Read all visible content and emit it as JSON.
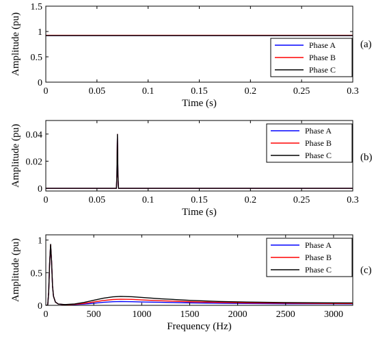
{
  "figure": {
    "colors": {
      "Phase A": "#0000ff",
      "Phase B": "#ff0000",
      "Phase C": "#000000"
    }
  },
  "chart_data": [
    {
      "type": "line",
      "panel_label": "(a)",
      "xlabel": "Time (s)",
      "ylabel": "Amplitude (pu)",
      "xlim": [
        0,
        0.3
      ],
      "ylim": [
        0,
        1.5
      ],
      "xticks": [
        0,
        0.05,
        0.1,
        0.15,
        0.2,
        0.25,
        0.3
      ],
      "xtick_labels": [
        "0",
        "0.05",
        "0.1",
        "0.15",
        "0.2",
        "0.25",
        "0.3"
      ],
      "yticks": [
        0,
        0.5,
        1,
        1.5
      ],
      "ytick_labels": [
        "0",
        "0.5",
        "1",
        "1.5"
      ],
      "grid": false,
      "legend_position": "bottom-right",
      "series": [
        {
          "name": "Phase A",
          "color": "#0000ff",
          "x": [
            0,
            0.3
          ],
          "y": [
            0.92,
            0.92
          ]
        },
        {
          "name": "Phase B",
          "color": "#ff0000",
          "x": [
            0,
            0.3
          ],
          "y": [
            0.925,
            0.925
          ]
        },
        {
          "name": "Phase C",
          "color": "#000000",
          "x": [
            0,
            0.3
          ],
          "y": [
            0.92,
            0.92
          ]
        }
      ]
    },
    {
      "type": "line",
      "panel_label": "(b)",
      "xlabel": "Time (s)",
      "ylabel": "Amplitude (pu)",
      "xlim": [
        0,
        0.3
      ],
      "ylim": [
        -0.002,
        0.05
      ],
      "xticks": [
        0,
        0.05,
        0.1,
        0.15,
        0.2,
        0.25,
        0.3
      ],
      "xtick_labels": [
        "0",
        "0.05",
        "0.1",
        "0.15",
        "0.2",
        "0.25",
        "0.3"
      ],
      "yticks": [
        0,
        0.02,
        0.04
      ],
      "ytick_labels": [
        "0",
        "0.02",
        "0.04"
      ],
      "grid": false,
      "legend_position": "top-right",
      "series": [
        {
          "name": "Phase A",
          "color": "#0000ff",
          "x": [
            0,
            0.069,
            0.0695,
            0.07,
            0.0705,
            0.071,
            0.3
          ],
          "y": [
            0,
            0,
            0.01,
            0.04,
            0.01,
            0,
            0
          ]
        },
        {
          "name": "Phase B",
          "color": "#ff0000",
          "x": [
            0,
            0.069,
            0.0695,
            0.07,
            0.0705,
            0.071,
            0.3
          ],
          "y": [
            0,
            0,
            0.01,
            0.04,
            0.01,
            0,
            0
          ]
        },
        {
          "name": "Phase C",
          "color": "#000000",
          "x": [
            0,
            0.069,
            0.0695,
            0.07,
            0.0705,
            0.071,
            0.3
          ],
          "y": [
            0,
            0,
            0.01,
            0.04,
            0.01,
            0,
            0
          ]
        }
      ]
    },
    {
      "type": "line",
      "panel_label": "(c)",
      "xlabel": "Frequency (Hz)",
      "ylabel": "Amplitude (pu)",
      "xlim": [
        0,
        3200
      ],
      "ylim": [
        0,
        1.08
      ],
      "xticks": [
        0,
        500,
        1000,
        1500,
        2000,
        2500,
        3000
      ],
      "xtick_labels": [
        "0",
        "500",
        "1000",
        "1500",
        "2000",
        "2500",
        "3000"
      ],
      "yticks": [
        0,
        0.5,
        1
      ],
      "ytick_labels": [
        "0",
        "0.5",
        "1"
      ],
      "grid": false,
      "legend_position": "top-right",
      "series": [
        {
          "name": "Phase A",
          "color": "#0000ff",
          "x": [
            0,
            20,
            30,
            40,
            50,
            60,
            70,
            80,
            100,
            130,
            200,
            300,
            400,
            500,
            600,
            700,
            780,
            900,
            1000,
            1200,
            1500,
            1800,
            2100,
            2500,
            2900,
            3200
          ],
          "y": [
            0,
            0.005,
            0.2,
            0.65,
            0.92,
            0.68,
            0.3,
            0.14,
            0.05,
            0.02,
            0.01,
            0.012,
            0.02,
            0.032,
            0.047,
            0.056,
            0.058,
            0.056,
            0.052,
            0.046,
            0.038,
            0.032,
            0.028,
            0.025,
            0.024,
            0.023
          ]
        },
        {
          "name": "Phase B",
          "color": "#ff0000",
          "x": [
            0,
            20,
            30,
            40,
            50,
            60,
            70,
            80,
            100,
            130,
            200,
            300,
            400,
            500,
            600,
            700,
            780,
            900,
            1000,
            1200,
            1500,
            1800,
            2100,
            2500,
            2900,
            3200
          ],
          "y": [
            0,
            0.005,
            0.2,
            0.65,
            0.93,
            0.68,
            0.3,
            0.14,
            0.05,
            0.02,
            0.01,
            0.016,
            0.03,
            0.052,
            0.074,
            0.089,
            0.094,
            0.091,
            0.083,
            0.07,
            0.055,
            0.045,
            0.038,
            0.033,
            0.03,
            0.028
          ]
        },
        {
          "name": "Phase C",
          "color": "#000000",
          "x": [
            0,
            20,
            30,
            40,
            50,
            60,
            70,
            80,
            100,
            130,
            200,
            300,
            400,
            500,
            600,
            700,
            780,
            900,
            1000,
            1200,
            1500,
            1800,
            2100,
            2500,
            2900,
            3200
          ],
          "y": [
            0,
            0.005,
            0.2,
            0.65,
            0.94,
            0.68,
            0.3,
            0.14,
            0.05,
            0.02,
            0.012,
            0.022,
            0.045,
            0.078,
            0.11,
            0.13,
            0.137,
            0.132,
            0.121,
            0.1,
            0.077,
            0.06,
            0.05,
            0.043,
            0.039,
            0.037
          ]
        }
      ]
    }
  ]
}
